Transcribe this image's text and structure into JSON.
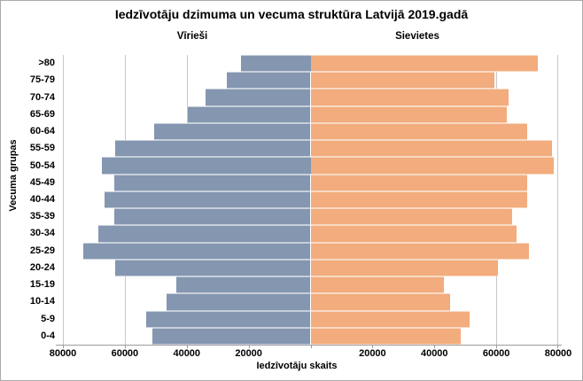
{
  "title": "Iedzīvotāju dzimuma un vecuma struktūra Latvijā 2019.gadā",
  "series_labels": {
    "male": "Vīrieši",
    "female": "Sievietes"
  },
  "axes": {
    "y_title": "Vecuma grupas",
    "x_title": "Iedzīvotāju skaits",
    "x_tick_labels_left": [
      "80000",
      "60000",
      "40000",
      "20000"
    ],
    "x_tick_labels_right": [
      "20000",
      "40000",
      "60000",
      "80000"
    ]
  },
  "colors": {
    "male_bar": "#8496B0",
    "female_bar": "#F2AC7D",
    "gridline": "#C9C9C9",
    "axis_line": "#9C9C9C",
    "text": "#000000",
    "background": "#FFFFFF",
    "canvas_border": "#ABABAB"
  },
  "chart_data": {
    "type": "bar",
    "subtype": "population-pyramid",
    "orientation": "horizontal",
    "title": "Iedzīvotāju dzimuma un vecuma struktūra Latvijā 2019.gadā",
    "xlabel": "Iedzīvotāju skaits",
    "ylabel": "Vecuma grupas",
    "xlim": [
      -80000,
      80000
    ],
    "x_tick_step": 20000,
    "grid": true,
    "categories": [
      ">80",
      "75-79",
      "70-74",
      "65-69",
      "60-64",
      "55-59",
      "50-54",
      "45-49",
      "40-44",
      "35-39",
      "30-34",
      "25-29",
      "20-24",
      "15-19",
      "10-14",
      "5-9",
      "0-4"
    ],
    "series": [
      {
        "name": "Vīrieši",
        "side": "left",
        "color": "#8496B0",
        "values": [
          22500,
          27000,
          34000,
          39500,
          50500,
          63000,
          67500,
          63500,
          66500,
          63500,
          68500,
          73500,
          63000,
          43500,
          46500,
          53000,
          51000
        ]
      },
      {
        "name": "Sievietes",
        "side": "right",
        "color": "#F2AC7D",
        "values": [
          73500,
          59500,
          64000,
          63500,
          70000,
          78000,
          78500,
          70000,
          70000,
          65000,
          66500,
          70500,
          60500,
          43000,
          45000,
          51500,
          48500
        ]
      }
    ]
  }
}
